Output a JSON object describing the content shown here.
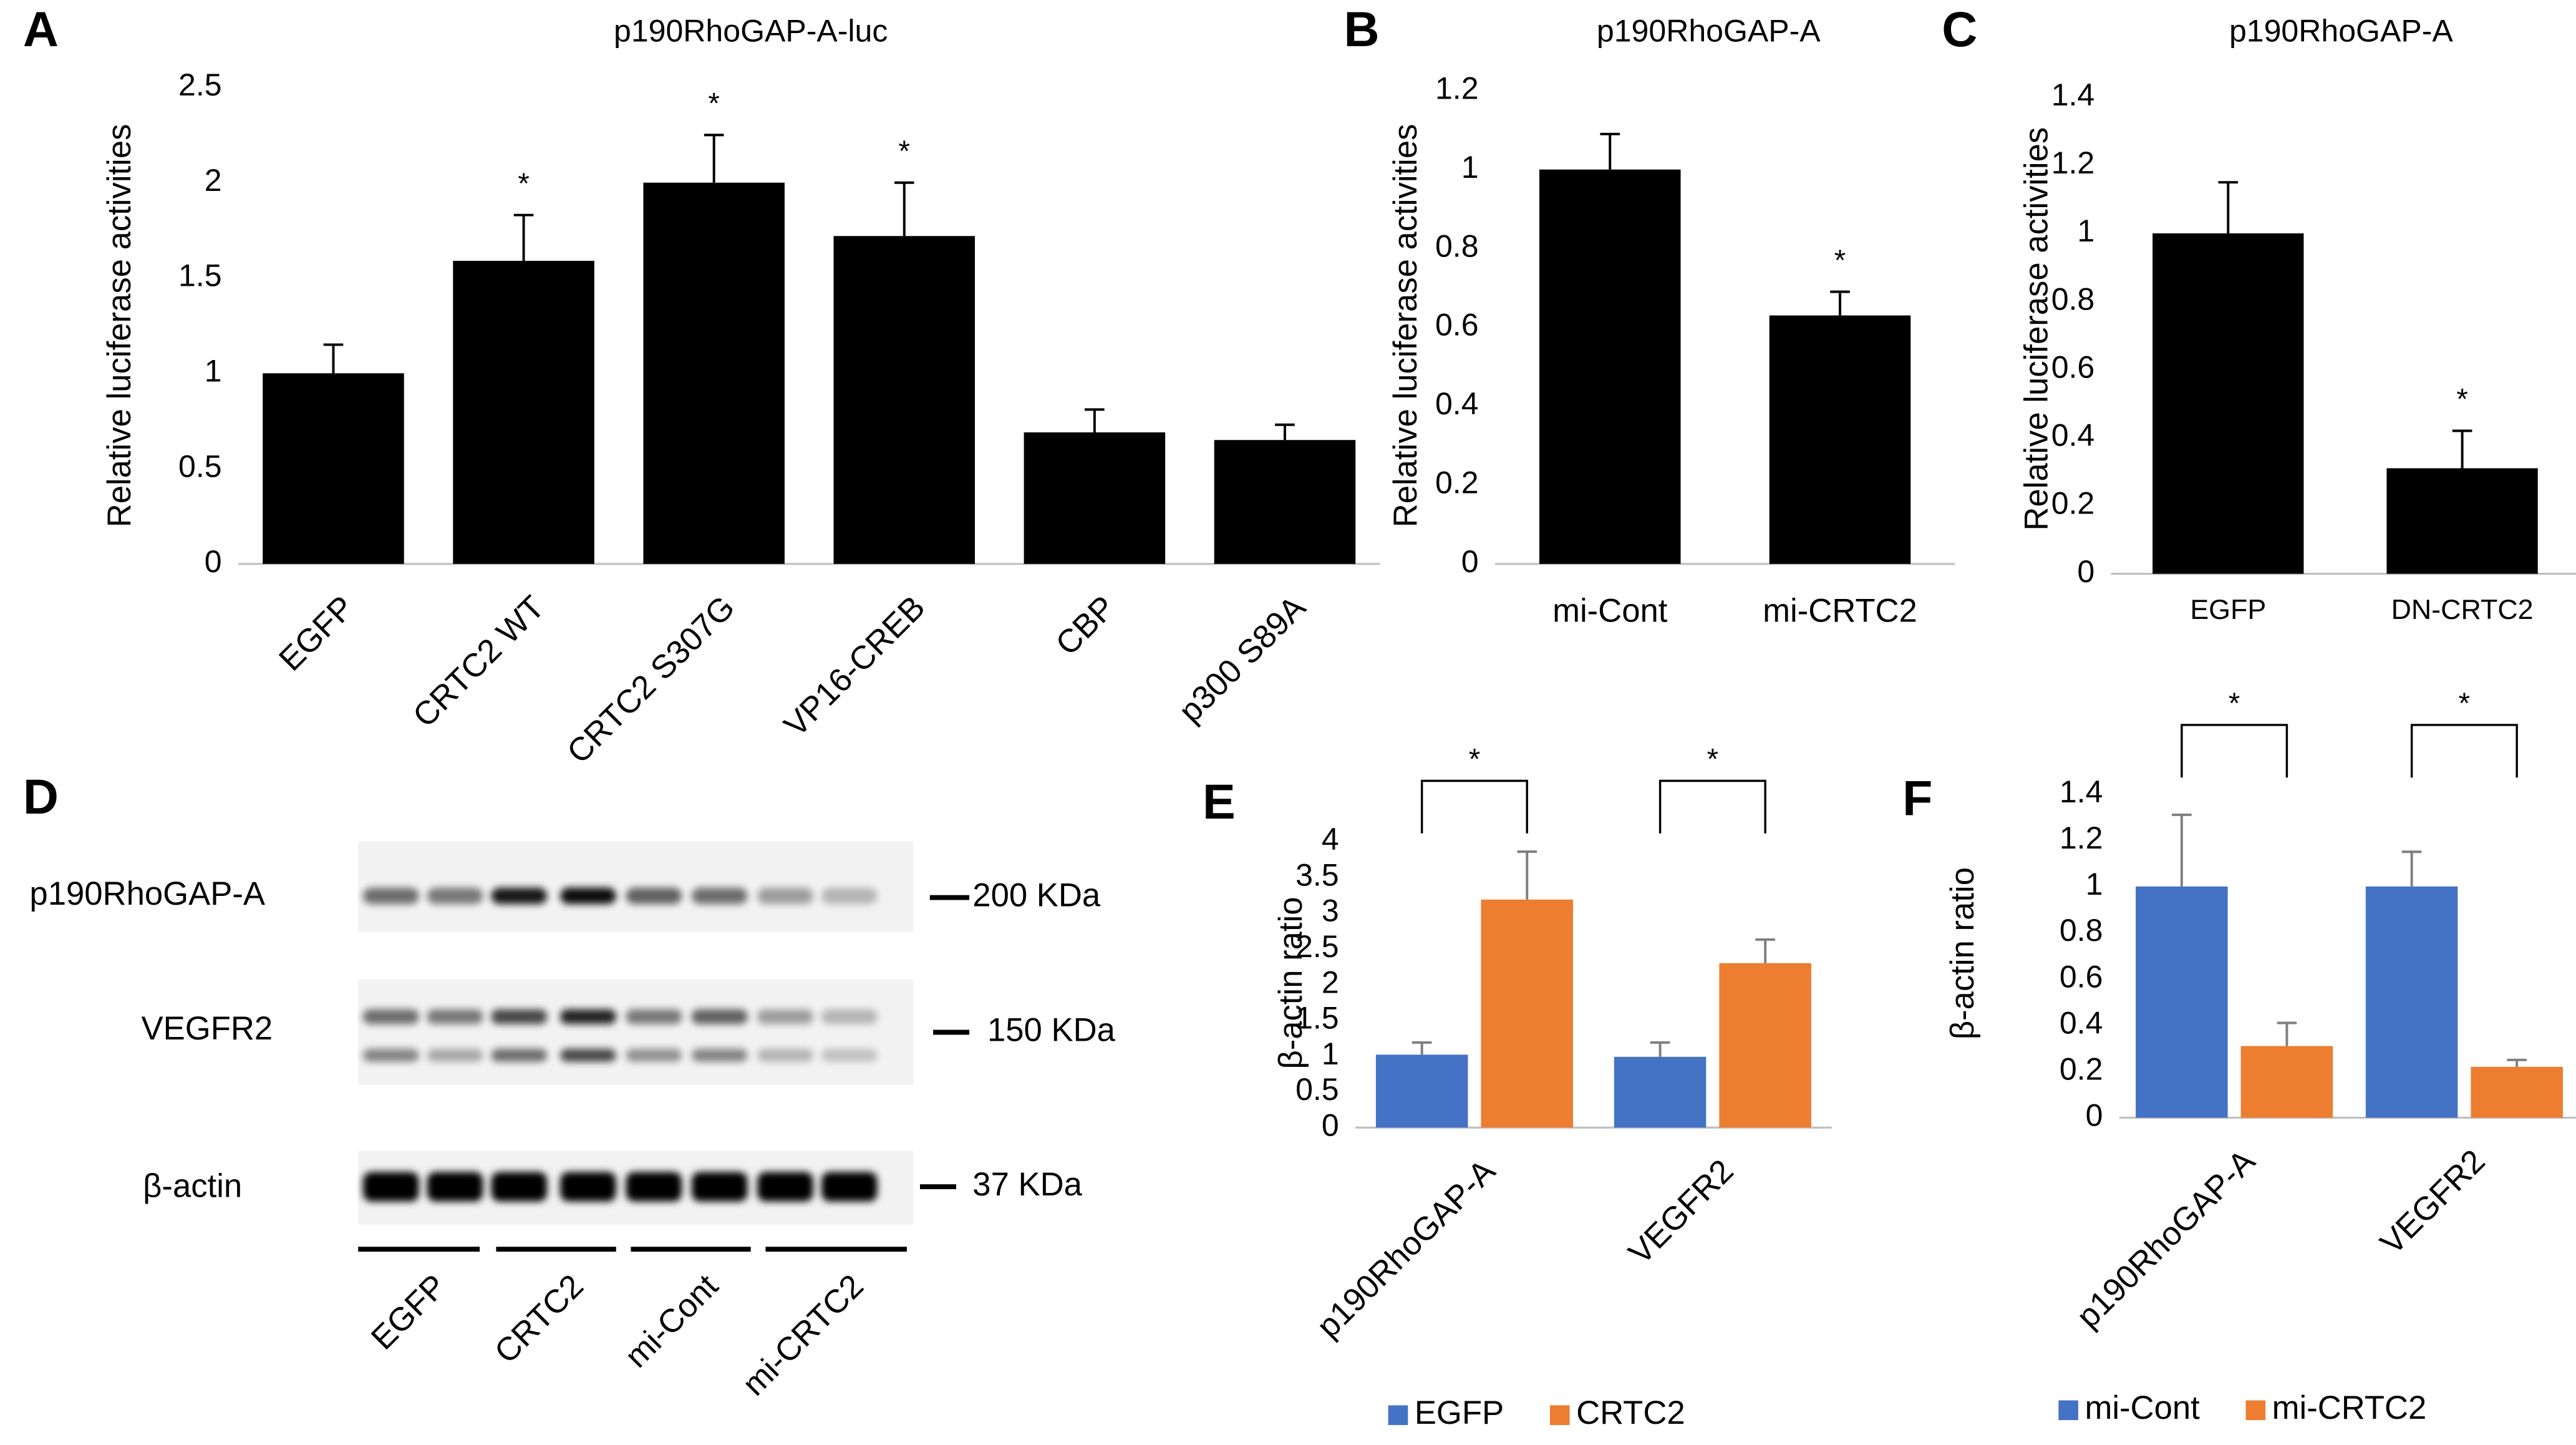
{
  "chart_data": [
    {
      "type": "bar",
      "label": "A",
      "title": "p190RhoGAP-A-luc",
      "ylabel": "Relative luciferase activities",
      "categories": [
        "EGFP",
        "CRTC2 WT",
        "CRTC2 S307G",
        "VP16-CREB",
        "CBP",
        "p300 S89A"
      ],
      "values": [
        1.0,
        1.59,
        2.0,
        1.72,
        0.69,
        0.65
      ],
      "errors": [
        0.15,
        0.24,
        0.25,
        0.28,
        0.12,
        0.08
      ],
      "color": "#000000",
      "ylim": [
        0,
        2.5
      ],
      "yticks": [
        0,
        0.5,
        1,
        1.5,
        2,
        2.5
      ],
      "annotations": [
        {
          "text": "*",
          "x": "CRTC2 WT"
        },
        {
          "text": "*",
          "x": "CRTC2 S307G"
        },
        {
          "text": "*",
          "x": "VP16-CREB"
        }
      ]
    },
    {
      "type": "bar",
      "label": "B",
      "title": "p190RhoGAP-A",
      "ylabel": "Relative luciferase activities",
      "categories": [
        "mi-Cont",
        "mi-CRTC2"
      ],
      "values": [
        1.0,
        0.63
      ],
      "errors": [
        0.09,
        0.06
      ],
      "color": "#000000",
      "ylim": [
        0,
        1.2
      ],
      "yticks": [
        0,
        0.2,
        0.4,
        0.6,
        0.8,
        1,
        1.2
      ],
      "annotations": [
        {
          "text": "*",
          "x": "mi-CRTC2"
        }
      ]
    },
    {
      "type": "bar",
      "label": "C",
      "title": "p190RhoGAP-A",
      "ylabel": "Relative luciferase activities",
      "categories": [
        "EGFP",
        "DN-CRTC2"
      ],
      "values": [
        1.0,
        0.31
      ],
      "errors": [
        0.15,
        0.11
      ],
      "color": "#000000",
      "ylim": [
        0,
        1.4
      ],
      "yticks": [
        0,
        0.2,
        0.4,
        0.6,
        0.8,
        1,
        1.2,
        1.4
      ],
      "annotations": [
        {
          "text": "*",
          "x": "DN-CRTC2"
        }
      ]
    },
    {
      "type": "grouped-bar",
      "label": "E",
      "ylabel": "β-actin ratio",
      "categories": [
        "p190RhoGAP-A",
        "VEGFR2"
      ],
      "series": [
        {
          "name": "EGFP",
          "color": "#4472c4",
          "values": [
            1.02,
            0.99
          ],
          "errors": [
            0.17,
            0.2
          ]
        },
        {
          "name": "CRTC2",
          "color": "#ed7d31",
          "values": [
            3.19,
            2.3
          ],
          "errors": [
            0.67,
            0.33
          ]
        }
      ],
      "ylim": [
        0,
        4
      ],
      "yticks": [
        0,
        0.5,
        1,
        1.5,
        2,
        2.5,
        3,
        3.5,
        4
      ],
      "annotations": [
        {
          "text": "*",
          "x": "p190RhoGAP-A"
        },
        {
          "text": "*",
          "x": "VEGFR2"
        }
      ]
    },
    {
      "type": "grouped-bar",
      "label": "F",
      "ylabel": "β-actin ratio",
      "categories": [
        "p190RhoGAP-A",
        "VEGFR2"
      ],
      "series": [
        {
          "name": "mi-Cont",
          "color": "#4472c4",
          "values": [
            1.0,
            1.0
          ],
          "errors": [
            0.31,
            0.15
          ]
        },
        {
          "name": "mi-CRTC2",
          "color": "#ed7d31",
          "values": [
            0.31,
            0.22
          ],
          "errors": [
            0.1,
            0.03
          ]
        }
      ],
      "ylim": [
        0,
        1.4
      ],
      "yticks": [
        0,
        0.2,
        0.4,
        0.6,
        0.8,
        1,
        1.2,
        1.4
      ],
      "annotations": [
        {
          "text": "*",
          "x": "p190RhoGAP-A"
        },
        {
          "text": "*",
          "x": "VEGFR2"
        }
      ]
    }
  ],
  "blot": {
    "label": "D",
    "rows": [
      {
        "name": "p190RhoGAP-A",
        "marker": "200 KDa"
      },
      {
        "name": "VEGFR2",
        "marker": "150 KDa"
      },
      {
        "name": "β-actin",
        "marker": "37 KDa"
      }
    ],
    "lanes": [
      "EGFP",
      "CRTC2",
      "mi-Cont",
      "mi-CRTC2"
    ]
  }
}
